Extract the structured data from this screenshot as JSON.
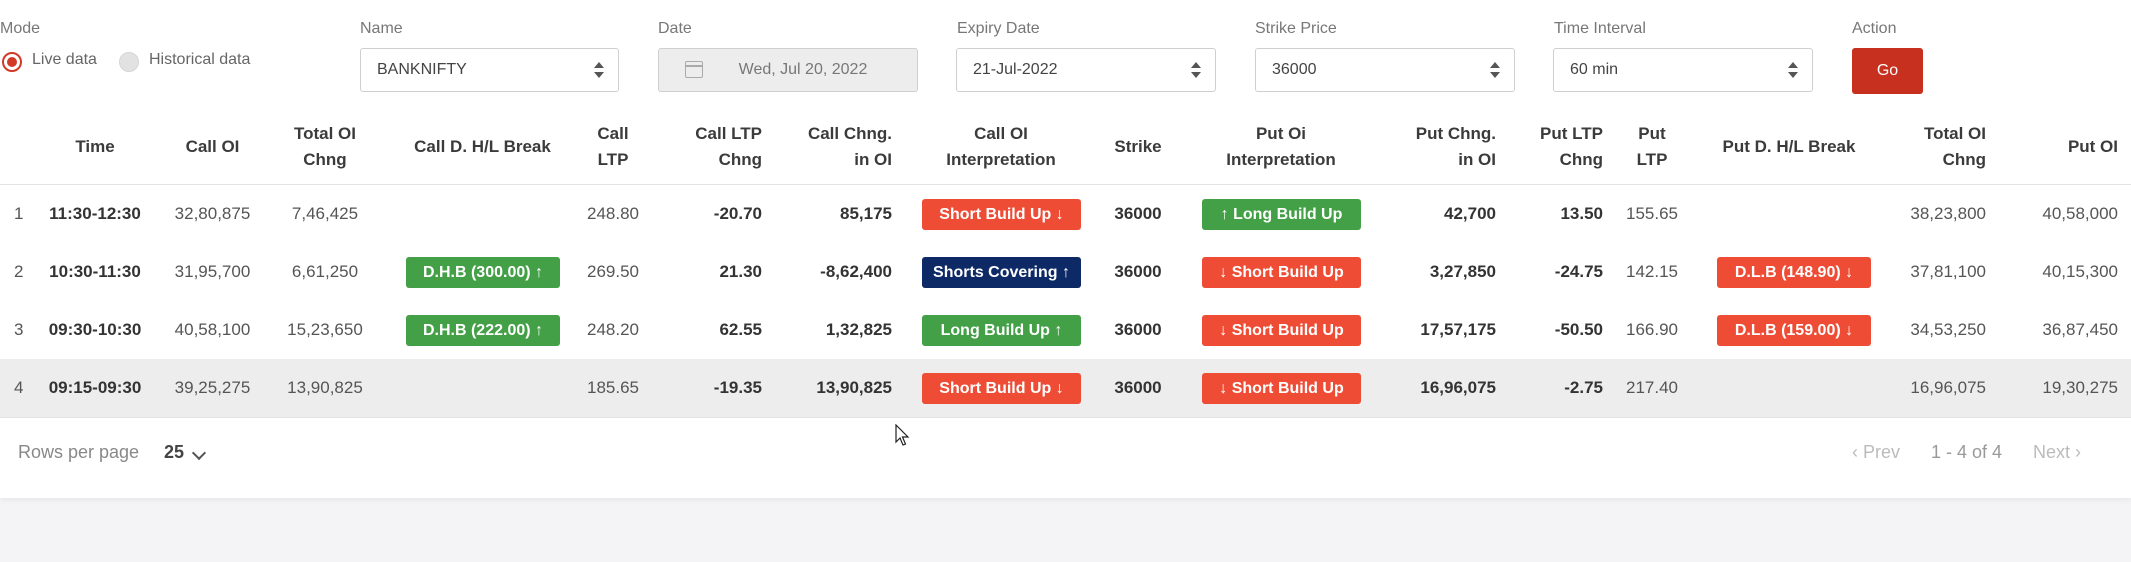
{
  "filters": {
    "mode_label": "Mode",
    "mode_options": [
      "Live data",
      "Historical data"
    ],
    "mode_selected": "Live data",
    "name_label": "Name",
    "name_value": "BANKNIFTY",
    "date_label": "Date",
    "date_value": "Wed, Jul 20, 2022",
    "expiry_label": "Expiry Date",
    "expiry_value": "21-Jul-2022",
    "strike_label": "Strike Price",
    "strike_value": "36000",
    "interval_label": "Time Interval",
    "interval_value": "60 min",
    "action_label": "Action",
    "go_label": "Go"
  },
  "colors": {
    "accent": "#c7301e",
    "badge_red": "#ee4c35",
    "badge_green": "#43a047",
    "badge_navy": "#0d2a66"
  },
  "table": {
    "headers": [
      "",
      "Time",
      "Call OI",
      "Total OI\nChng",
      "Call D. H/L Break",
      "Call\nLTP",
      "Call LTP\nChng",
      "Call Chng.\nin OI",
      "Call OI\nInterpretation",
      "Strike",
      "Put Oi\nInterpretation",
      "Put Chng.\nin OI",
      "Put LTP\nChng",
      "Put\nLTP",
      "Put D. H/L Break",
      "Total OI\nChng",
      "Put OI"
    ],
    "rows": [
      {
        "num": "1",
        "time": "11:30-12:30",
        "call_oi": "32,80,875",
        "total_oi_chng": "7,46,425",
        "call_break": "",
        "call_break_color": "",
        "call_ltp": "248.80",
        "call_ltp_chng": "-20.70",
        "call_chng_oi": "85,175",
        "call_interp": "Short Build Up ↓",
        "call_interp_color": "red",
        "strike": "36000",
        "put_interp": "↑ Long Build Up",
        "put_interp_color": "green",
        "put_chng_oi": "42,700",
        "put_ltp_chng": "13.50",
        "put_ltp": "155.65",
        "put_break": "",
        "put_break_color": "",
        "put_total_oi_chng": "38,23,800",
        "put_oi": "40,58,000",
        "highlight": false
      },
      {
        "num": "2",
        "time": "10:30-11:30",
        "call_oi": "31,95,700",
        "total_oi_chng": "6,61,250",
        "call_break": "D.H.B (300.00) ↑",
        "call_break_color": "green",
        "call_ltp": "269.50",
        "call_ltp_chng": "21.30",
        "call_chng_oi": "-8,62,400",
        "call_interp": "Shorts Covering ↑",
        "call_interp_color": "navy",
        "strike": "36000",
        "put_interp": "↓ Short Build Up",
        "put_interp_color": "red",
        "put_chng_oi": "3,27,850",
        "put_ltp_chng": "-24.75",
        "put_ltp": "142.15",
        "put_break": "D.L.B (148.90) ↓",
        "put_break_color": "red",
        "put_total_oi_chng": "37,81,100",
        "put_oi": "40,15,300",
        "highlight": false
      },
      {
        "num": "3",
        "time": "09:30-10:30",
        "call_oi": "40,58,100",
        "total_oi_chng": "15,23,650",
        "call_break": "D.H.B (222.00) ↑",
        "call_break_color": "green",
        "call_ltp": "248.20",
        "call_ltp_chng": "62.55",
        "call_chng_oi": "1,32,825",
        "call_interp": "Long Build Up ↑",
        "call_interp_color": "green",
        "strike": "36000",
        "put_interp": "↓ Short Build Up",
        "put_interp_color": "red",
        "put_chng_oi": "17,57,175",
        "put_ltp_chng": "-50.50",
        "put_ltp": "166.90",
        "put_break": "D.L.B (159.00) ↓",
        "put_break_color": "red",
        "put_total_oi_chng": "34,53,250",
        "put_oi": "36,87,450",
        "highlight": false
      },
      {
        "num": "4",
        "time": "09:15-09:30",
        "call_oi": "39,25,275",
        "total_oi_chng": "13,90,825",
        "call_break": "",
        "call_break_color": "",
        "call_ltp": "185.65",
        "call_ltp_chng": "-19.35",
        "call_chng_oi": "13,90,825",
        "call_interp": "Short Build Up ↓",
        "call_interp_color": "red",
        "strike": "36000",
        "put_interp": "↓ Short Build Up",
        "put_interp_color": "red",
        "put_chng_oi": "16,96,075",
        "put_ltp_chng": "-2.75",
        "put_ltp": "217.40",
        "put_break": "",
        "put_break_color": "",
        "put_total_oi_chng": "16,96,075",
        "put_oi": "19,30,275",
        "highlight": true
      }
    ]
  },
  "footer": {
    "rows_per_page_label": "Rows per page",
    "rows_per_page_value": "25",
    "prev_label": "Prev",
    "range_text": "1 - 4 of 4",
    "next_label": "Next"
  },
  "icons": {
    "calendar": "calendar-icon",
    "select_arrows": "sort-arrows-icon",
    "dropdown": "chevron-down-icon",
    "prev": "chevron-left-icon",
    "next": "chevron-right-icon",
    "cursor": "mouse-cursor-icon"
  }
}
